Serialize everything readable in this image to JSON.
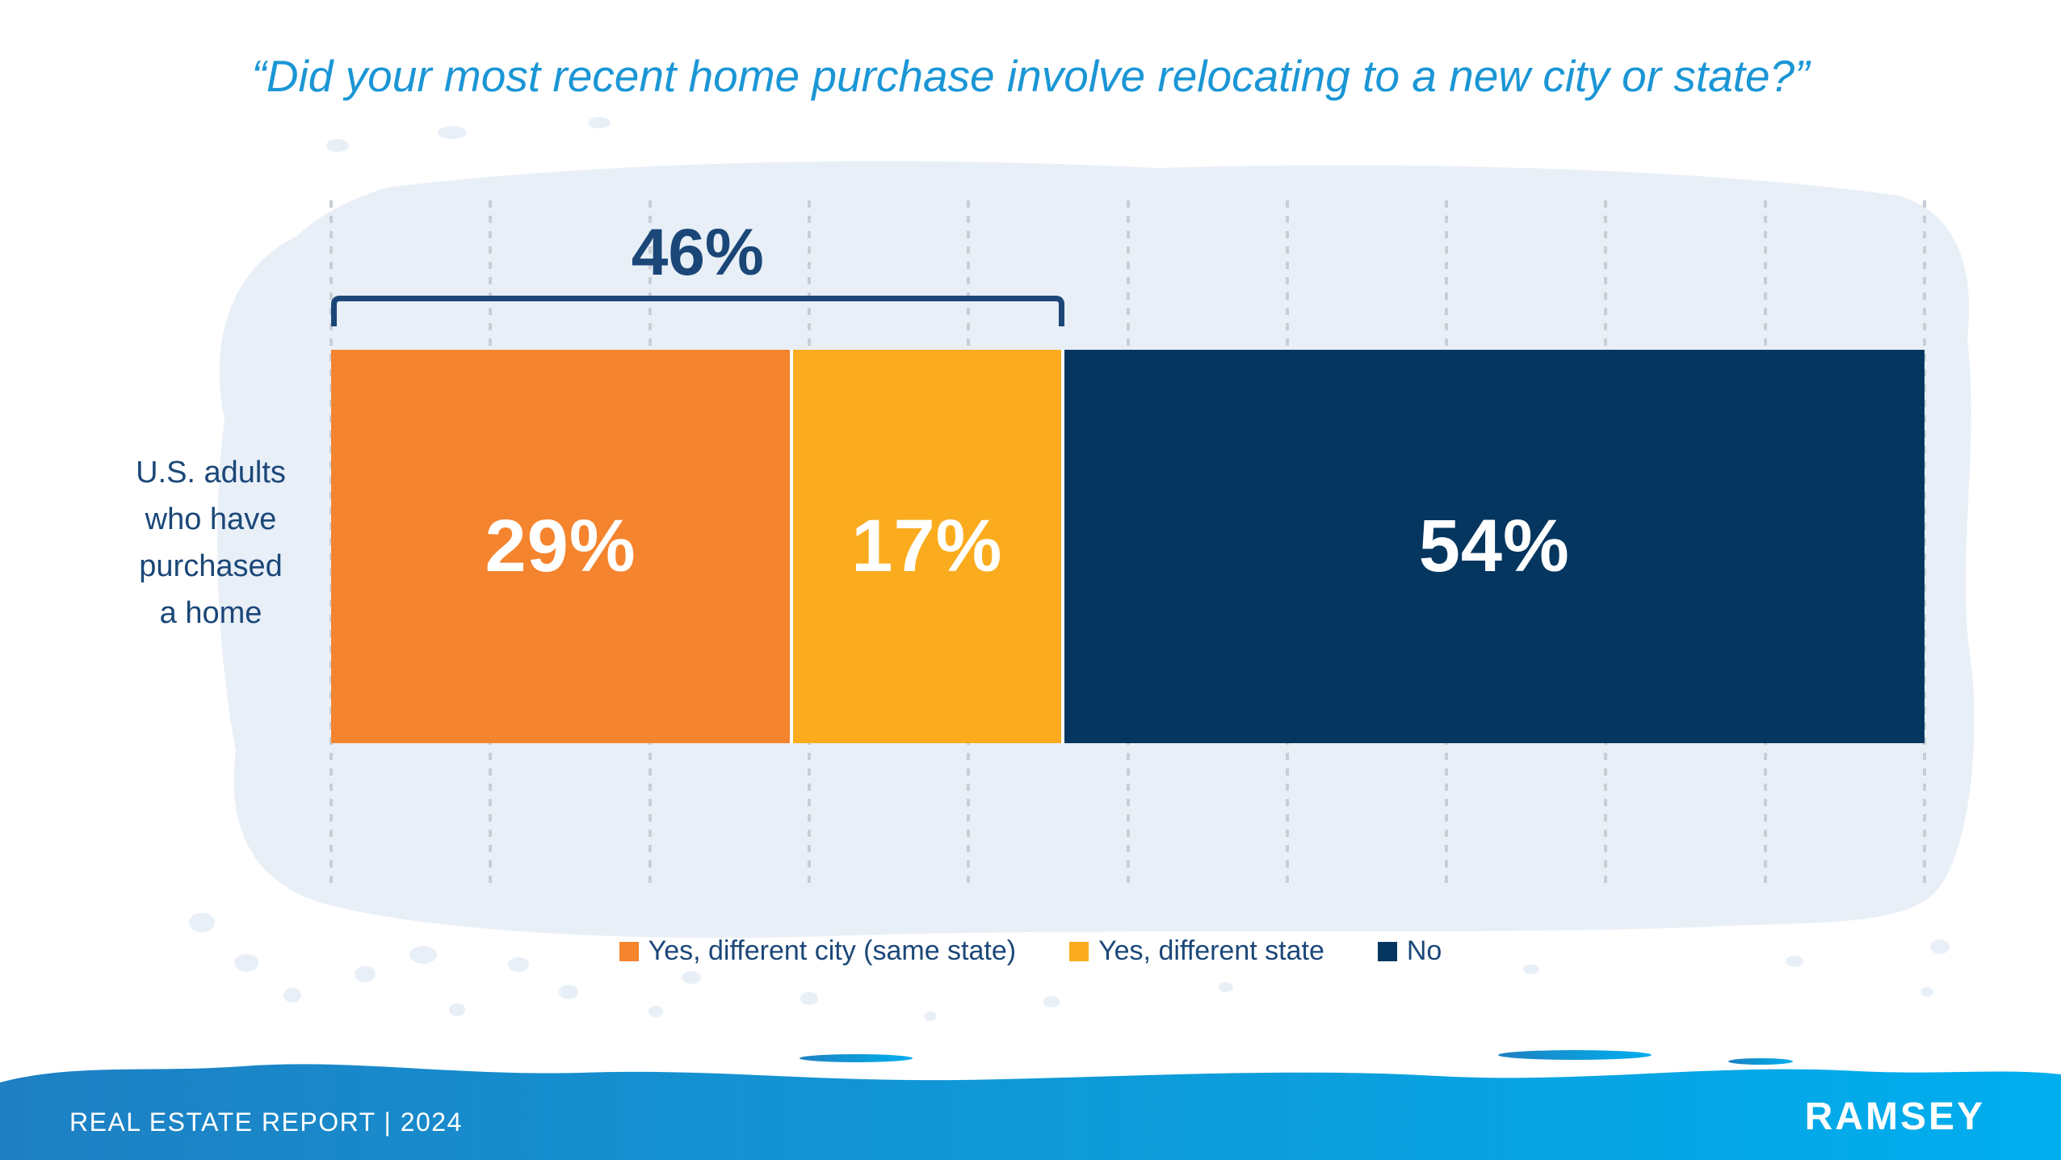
{
  "page": {
    "title": "“Did your most recent home purchase involve relocating to a new city or state?”"
  },
  "chart_data": {
    "type": "bar",
    "orientation": "horizontal",
    "stacked": true,
    "title": "Did your most recent home purchase involve relocating to a new city or state?",
    "category": "U.S. adults who have purchased a home",
    "category_lines": [
      "U.S. adults",
      "who have",
      "purchased",
      "a home"
    ],
    "series": [
      {
        "name": "Yes, different city (same state)",
        "value": 29,
        "label": "29%",
        "color": "#F5842F"
      },
      {
        "name": "Yes, different state",
        "value": 17,
        "label": "17%",
        "color": "#FAAC1E"
      },
      {
        "name": "No",
        "value": 54,
        "label": "54%",
        "color": "#04365F"
      }
    ],
    "bracket_annotation": {
      "label": "46%",
      "from_pct": 0,
      "to_pct": 46
    },
    "x_axis": {
      "min": 0,
      "max": 100,
      "unit": "%",
      "gridline_interval_pct": 10,
      "gridlines_count": 11,
      "gridline_style": "dotted"
    },
    "legend_position": "bottom"
  },
  "footer": {
    "report_label": "REAL ESTATE REPORT | 2024",
    "brand": "RAMSEY"
  },
  "colors": {
    "title_blue": "#1B96D5",
    "navy_text": "#1B4778",
    "bar_navy": "#04365F",
    "orange": "#F5842F",
    "yellow": "#FAAC1E",
    "brush_light_blue": "#E8EFF7",
    "gridline_gray": "#C8CED5",
    "footer_gradient_left": "#1E80C3",
    "footer_gradient_right": "#00AEEF",
    "bar_label_white": "#FFFFFF"
  }
}
